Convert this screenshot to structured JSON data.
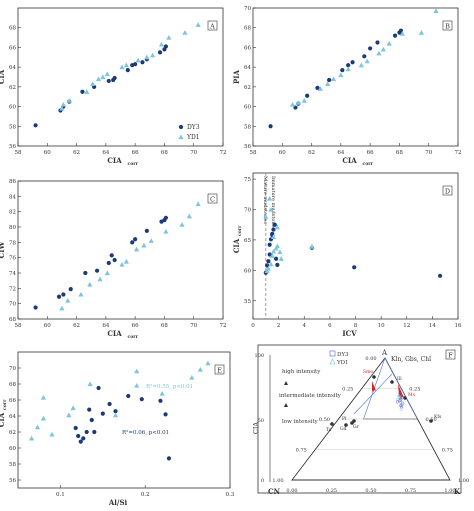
{
  "colors": {
    "dy3": "#1a3a7a",
    "yd1": "#7cc4df",
    "dashed": "#888888",
    "red": "#e02020",
    "axis": "#333333"
  },
  "legend": {
    "dy3": "DY3",
    "yd1": "YD1"
  },
  "chart_data": [
    {
      "id": "A",
      "type": "scatter",
      "panel_label": "A",
      "xlabel": "CIA",
      "xlabel_sub": "corr",
      "ylabel": "CIA",
      "xlim": [
        58,
        72
      ],
      "ylim": [
        56,
        70
      ],
      "xticks": [
        "58",
        "60",
        "62",
        "64",
        "66",
        "68",
        "70",
        "72"
      ],
      "yticks": [
        "56",
        "58",
        "60",
        "62",
        "64",
        "66",
        "68"
      ],
      "legend": true,
      "series": [
        {
          "name": "DY3",
          "marker": "circle",
          "points": [
            [
              59.2,
              58.1
            ],
            [
              60.9,
              59.6
            ],
            [
              61.1,
              60.0
            ],
            [
              61.5,
              60.5
            ],
            [
              62.4,
              61.5
            ],
            [
              63.2,
              62.0
            ],
            [
              64.2,
              62.6
            ],
            [
              64.5,
              62.7
            ],
            [
              64.6,
              62.9
            ],
            [
              65.5,
              63.7
            ],
            [
              65.8,
              64.2
            ],
            [
              66.0,
              64.3
            ],
            [
              66.5,
              64.5
            ],
            [
              66.8,
              64.8
            ],
            [
              67.7,
              65.5
            ],
            [
              68.0,
              65.8
            ],
            [
              68.1,
              66.1
            ]
          ]
        },
        {
          "name": "YD1",
          "marker": "triangle",
          "points": [
            [
              61.0,
              59.8
            ],
            [
              61.1,
              60.2
            ],
            [
              61.5,
              60.6
            ],
            [
              62.7,
              61.5
            ],
            [
              63.1,
              62.3
            ],
            [
              63.5,
              62.8
            ],
            [
              63.8,
              63.0
            ],
            [
              64.1,
              63.3
            ],
            [
              65.1,
              64.0
            ],
            [
              65.4,
              64.2
            ],
            [
              66.2,
              64.7
            ],
            [
              66.8,
              65.0
            ],
            [
              67.2,
              65.2
            ],
            [
              67.8,
              66.3
            ],
            [
              68.3,
              67.0
            ],
            [
              69.4,
              67.5
            ],
            [
              70.3,
              68.3
            ]
          ]
        }
      ]
    },
    {
      "id": "B",
      "type": "scatter",
      "panel_label": "B",
      "xlabel": "CIA",
      "xlabel_sub": "corr",
      "ylabel": "PIA",
      "xlim": [
        58,
        72
      ],
      "ylim": [
        56,
        70
      ],
      "xticks": [
        "58",
        "60",
        "62",
        "64",
        "66",
        "68",
        "70",
        "72"
      ],
      "yticks": [
        "56",
        "58",
        "60",
        "62",
        "64",
        "66",
        "68",
        "70"
      ],
      "legend": false,
      "series": [
        {
          "name": "DY3",
          "marker": "circle",
          "points": [
            [
              59.2,
              58.0
            ],
            [
              60.9,
              59.9
            ],
            [
              61.1,
              60.3
            ],
            [
              61.7,
              61.1
            ],
            [
              62.4,
              61.9
            ],
            [
              63.2,
              62.7
            ],
            [
              64.1,
              63.7
            ],
            [
              64.5,
              64.2
            ],
            [
              64.8,
              64.5
            ],
            [
              65.6,
              65.1
            ],
            [
              66.0,
              65.9
            ],
            [
              66.5,
              66.5
            ],
            [
              67.7,
              67.2
            ],
            [
              68.0,
              67.5
            ],
            [
              68.1,
              67.7
            ]
          ]
        },
        {
          "name": "YD1",
          "marker": "triangle",
          "points": [
            [
              60.7,
              60.2
            ],
            [
              61.1,
              60.4
            ],
            [
              61.5,
              60.6
            ],
            [
              62.6,
              61.8
            ],
            [
              63.1,
              62.3
            ],
            [
              63.5,
              62.8
            ],
            [
              64.0,
              63.2
            ],
            [
              64.5,
              63.8
            ],
            [
              65.4,
              64.2
            ],
            [
              65.8,
              64.6
            ],
            [
              66.6,
              65.4
            ],
            [
              66.9,
              65.8
            ],
            [
              67.3,
              66.4
            ],
            [
              68.2,
              67.4
            ],
            [
              69.5,
              67.5
            ],
            [
              70.5,
              69.7
            ]
          ]
        }
      ]
    },
    {
      "id": "C",
      "type": "scatter",
      "panel_label": "C",
      "xlabel": "CIA",
      "xlabel_sub": "corr",
      "ylabel": "CIW",
      "xlim": [
        58,
        72
      ],
      "ylim": [
        68,
        86
      ],
      "xticks": [
        "58",
        "60",
        "62",
        "64",
        "66",
        "68",
        "70",
        "72"
      ],
      "yticks": [
        "68",
        "70",
        "72",
        "74",
        "76",
        "78",
        "80",
        "82",
        "84",
        "86"
      ],
      "legend": false,
      "series": [
        {
          "name": "DY3",
          "marker": "circle",
          "points": [
            [
              59.2,
              69.5
            ],
            [
              60.8,
              70.9
            ],
            [
              61.1,
              71.2
            ],
            [
              61.6,
              71.9
            ],
            [
              62.6,
              74.0
            ],
            [
              63.4,
              74.3
            ],
            [
              64.2,
              75.3
            ],
            [
              64.4,
              76.3
            ],
            [
              64.6,
              75.7
            ],
            [
              65.8,
              78.0
            ],
            [
              66.0,
              78.4
            ],
            [
              66.8,
              79.5
            ],
            [
              67.8,
              80.7
            ],
            [
              68.0,
              80.9
            ],
            [
              68.1,
              81.2
            ]
          ]
        },
        {
          "name": "YD1",
          "marker": "triangle",
          "points": [
            [
              61.0,
              69.4
            ],
            [
              61.4,
              70.4
            ],
            [
              62.3,
              71.2
            ],
            [
              62.9,
              72.5
            ],
            [
              63.6,
              73.2
            ],
            [
              64.1,
              74.0
            ],
            [
              65.1,
              75.1
            ],
            [
              65.4,
              75.5
            ],
            [
              66.1,
              77.1
            ],
            [
              66.6,
              77.6
            ],
            [
              67.1,
              78.2
            ],
            [
              68.1,
              79.4
            ],
            [
              69.2,
              80.3
            ],
            [
              69.7,
              81.4
            ],
            [
              70.3,
              83.0
            ]
          ]
        }
      ]
    },
    {
      "id": "D",
      "type": "scatter",
      "panel_label": "D",
      "xlabel": "ICV",
      "ylabel": "CIA",
      "ylabel_sub": "corr",
      "xlim": [
        0,
        16
      ],
      "ylim": [
        52,
        76
      ],
      "xticks": [
        "0",
        "2",
        "4",
        "6",
        "8",
        "10",
        "12",
        "14",
        "16"
      ],
      "yticks": [
        "55",
        "60",
        "65",
        "70",
        "75"
      ],
      "legend": false,
      "reference_line": {
        "x": 1.0,
        "style": "dashed"
      },
      "annotations": [
        "Mature mudstones",
        "Immature mudstones"
      ],
      "series": [
        {
          "name": "DY3",
          "marker": "circle",
          "points": [
            [
              1.0,
              59.6
            ],
            [
              1.1,
              60.8
            ],
            [
              1.2,
              61.5
            ],
            [
              1.3,
              62.6
            ],
            [
              1.3,
              64.2
            ],
            [
              1.4,
              65.1
            ],
            [
              1.5,
              65.8
            ],
            [
              1.6,
              66.7
            ],
            [
              1.7,
              67.5
            ],
            [
              1.8,
              61.9
            ],
            [
              1.5,
              66.0
            ],
            [
              1.9,
              60.9
            ],
            [
              4.6,
              63.7
            ],
            [
              7.9,
              60.5
            ],
            [
              14.6,
              59.1
            ]
          ]
        },
        {
          "name": "YD1",
          "marker": "triangle",
          "points": [
            [
              1.1,
              59.9
            ],
            [
              1.2,
              60.3
            ],
            [
              1.4,
              61.0
            ],
            [
              1.5,
              62.4
            ],
            [
              1.6,
              63.1
            ],
            [
              1.8,
              63.6
            ],
            [
              1.9,
              64.0
            ],
            [
              2.1,
              63.0
            ],
            [
              1.0,
              68.8
            ],
            [
              1.3,
              71.8
            ],
            [
              1.4,
              70.0
            ],
            [
              1.6,
              65.5
            ],
            [
              1.9,
              67.1
            ],
            [
              2.2,
              61.9
            ],
            [
              4.6,
              63.9
            ]
          ]
        }
      ]
    },
    {
      "id": "E",
      "type": "scatter",
      "panel_label": "E",
      "xlabel": "Al/Si",
      "ylabel": "CIA",
      "ylabel_sub": "corr",
      "xlim": [
        0.05,
        0.3
      ],
      "ylim": [
        55,
        72
      ],
      "xticks": [
        "0.1",
        "0.2",
        "0.3"
      ],
      "xtick_values": [
        0.1,
        0.2,
        0.3
      ],
      "yticks": [
        "56",
        "58",
        "60",
        "62",
        "64",
        "66",
        "68",
        "70"
      ],
      "legend": false,
      "annotations": [
        {
          "text": "R²=0.55, p<0.01",
          "series": "YD1"
        },
        {
          "text": "R²=0.06, p<0.01",
          "series": "DY3"
        }
      ],
      "series": [
        {
          "name": "DY3",
          "marker": "circle",
          "points": [
            [
              0.118,
              62.5
            ],
            [
              0.121,
              61.5
            ],
            [
              0.124,
              60.8
            ],
            [
              0.127,
              61.2
            ],
            [
              0.131,
              62.0
            ],
            [
              0.134,
              64.8
            ],
            [
              0.137,
              63.5
            ],
            [
              0.14,
              62.0
            ],
            [
              0.145,
              67.5
            ],
            [
              0.15,
              64.3
            ],
            [
              0.158,
              65.5
            ],
            [
              0.165,
              64.6
            ],
            [
              0.18,
              66.5
            ],
            [
              0.196,
              66.1
            ],
            [
              0.218,
              65.9
            ],
            [
              0.224,
              64.2
            ],
            [
              0.228,
              58.7
            ]
          ]
        },
        {
          "name": "YD1",
          "marker": "triangle",
          "points": [
            [
              0.066,
              61.2
            ],
            [
              0.073,
              62.6
            ],
            [
              0.08,
              63.7
            ],
            [
              0.09,
              61.7
            ],
            [
              0.11,
              64.1
            ],
            [
              0.115,
              65.0
            ],
            [
              0.135,
              68.0
            ],
            [
              0.165,
              64.1
            ],
            [
              0.19,
              67.8
            ],
            [
              0.22,
              66.8
            ],
            [
              0.255,
              68.8
            ],
            [
              0.265,
              69.8
            ],
            [
              0.08,
              66.3
            ],
            [
              0.274,
              70.6
            ],
            [
              0.19,
              69.6
            ]
          ]
        }
      ]
    },
    {
      "id": "F",
      "type": "ternary",
      "panel_label": "F",
      "vertices": {
        "top": "A",
        "left": "CN",
        "right": "K"
      },
      "minerals": "Kln, Gbs, Chl",
      "cia_axis": {
        "label": "CIA",
        "ticks": [
          "100",
          "50",
          "0"
        ]
      },
      "axis_ticks": [
        "0.00",
        "0.25",
        "0.50",
        "0.75",
        "1.00"
      ],
      "weathering": [
        "high intensity",
        "intermediate intensity",
        "low intensity"
      ],
      "mineral_points": [
        "Ms",
        "Kfs",
        "Sme",
        "Ill",
        "Pl",
        "To",
        "Gd",
        "Gr"
      ],
      "samples": "approximately 30 points near A:0.66, CN:0.04, K:0.30"
    }
  ]
}
